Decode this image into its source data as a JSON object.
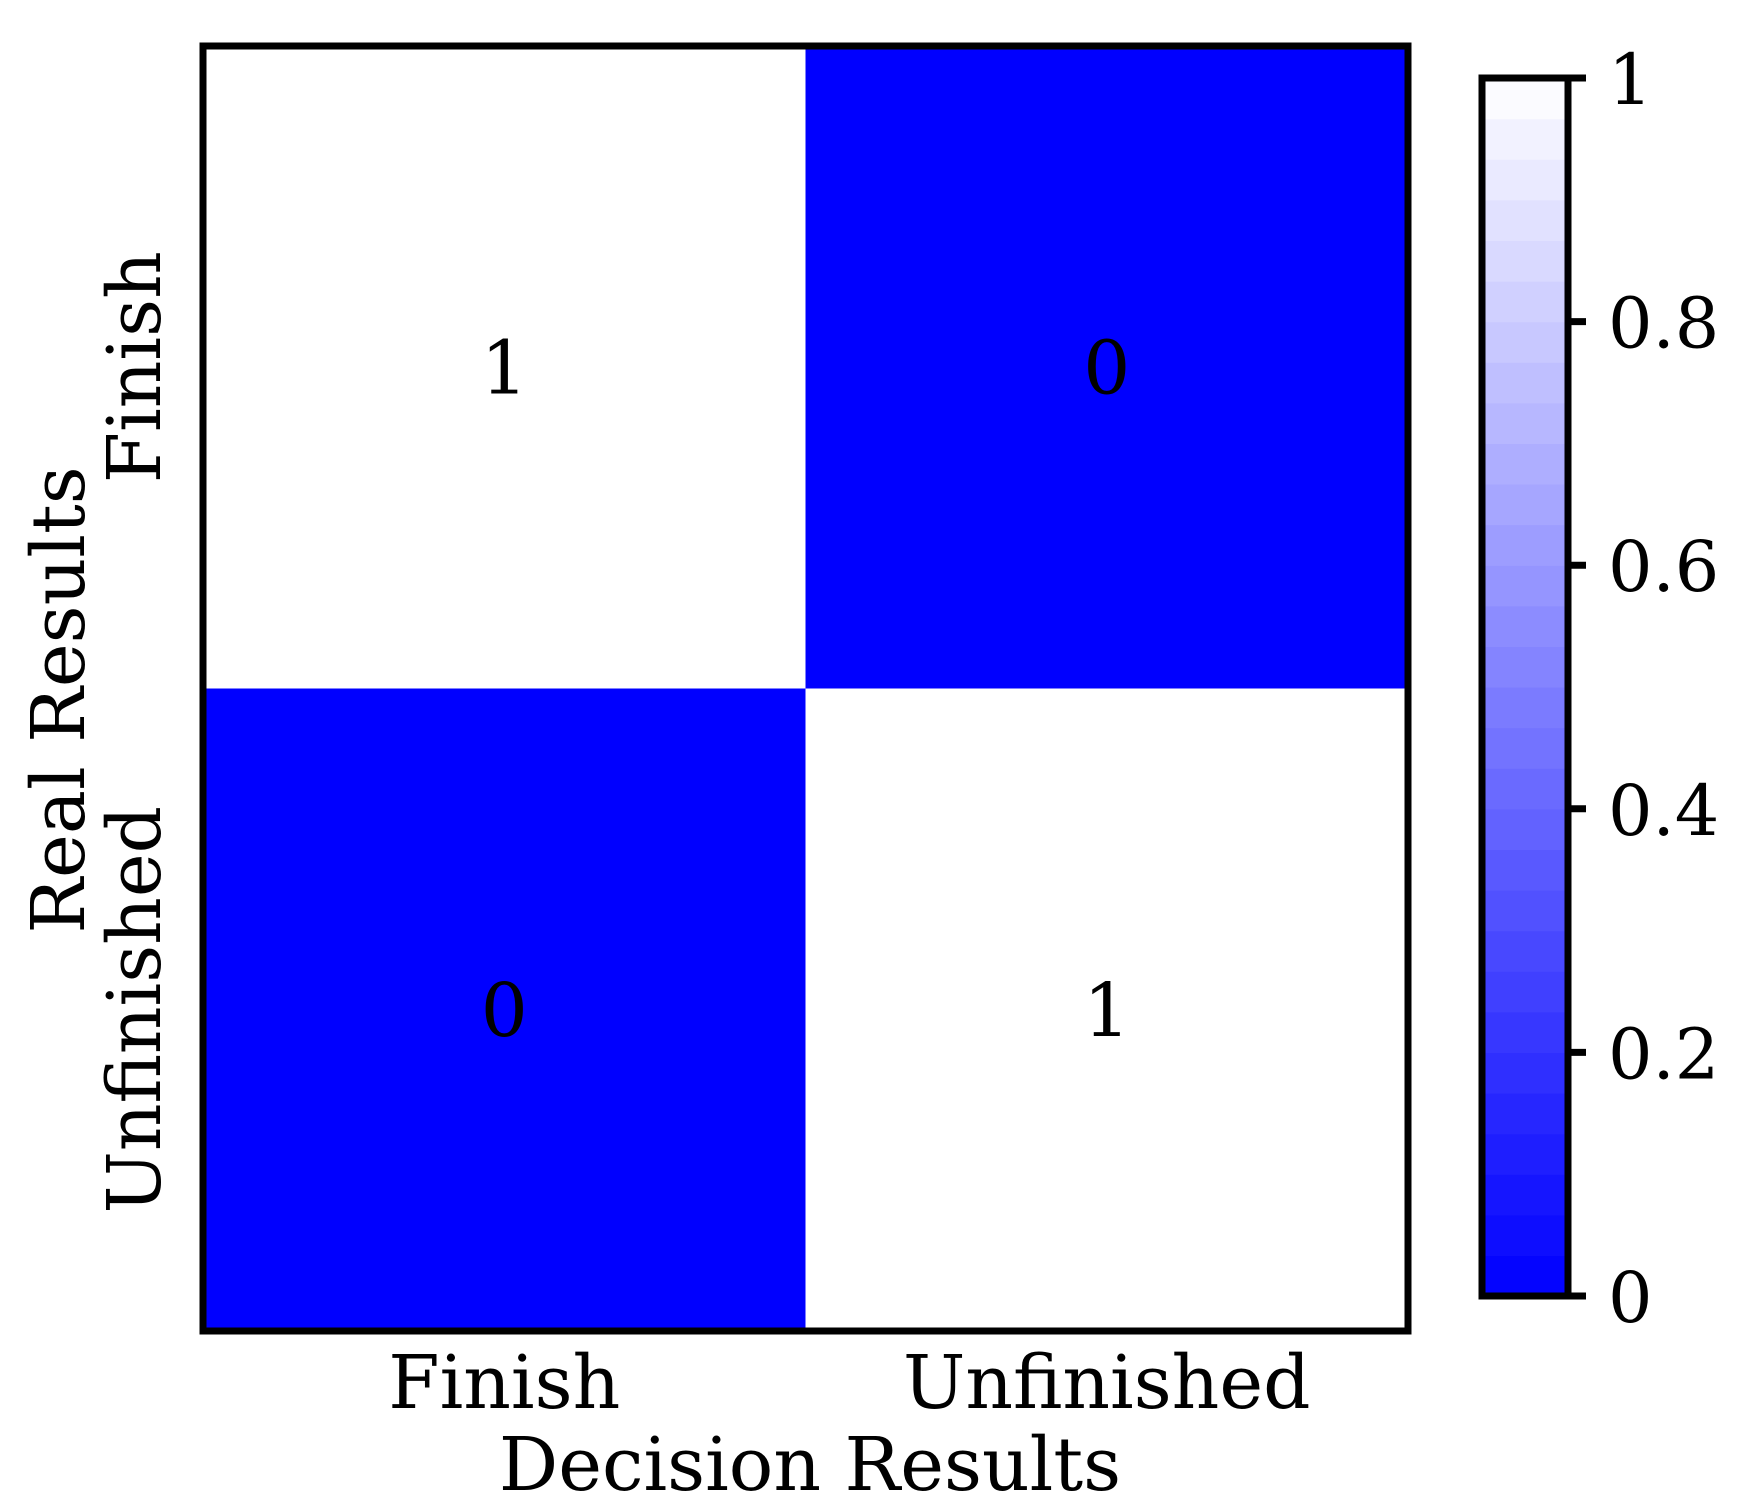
{
  "chart_data": {
    "type": "heatmap",
    "title": "",
    "xlabel": "Decision Results",
    "ylabel": "Real Results",
    "x_categories": [
      "Finish",
      "Unfinished"
    ],
    "y_categories": [
      "Finish",
      "Unfinished"
    ],
    "values": [
      [
        1,
        0
      ],
      [
        0,
        1
      ]
    ],
    "value_labels": [
      [
        "1",
        "0"
      ],
      [
        "0",
        "1"
      ]
    ],
    "colorbar": {
      "min": 0,
      "max": 1,
      "ticks": [
        0,
        0.2,
        0.4,
        0.6,
        0.8,
        1
      ],
      "tick_labels": [
        "0",
        "0.2",
        "0.4",
        "0.6",
        "0.8",
        "1"
      ],
      "color_low": "#0000ff",
      "color_high": "#ffffff",
      "placement": "right"
    },
    "grid": false
  }
}
